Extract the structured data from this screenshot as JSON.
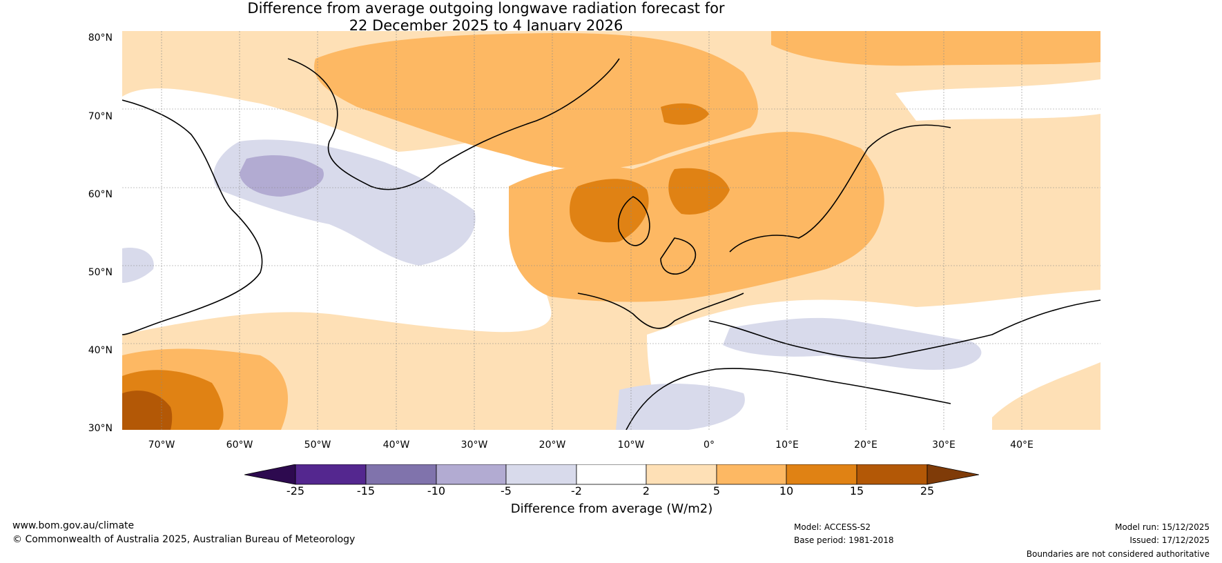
{
  "title": {
    "line1": "Difference from average outgoing longwave radiation forecast for",
    "line2": "22 December 2025 to 4 January 2026"
  },
  "map": {
    "lat_labels": [
      "80°N",
      "70°N",
      "60°N",
      "50°N",
      "40°N",
      "30°N"
    ],
    "lon_labels": [
      "70°W",
      "60°W",
      "50°W",
      "40°W",
      "30°W",
      "20°W",
      "10°W",
      "0°",
      "10°E",
      "20°E",
      "30°E",
      "40°E"
    ]
  },
  "colorbar": {
    "title": "Difference from average (W/m2)",
    "tick_labels": [
      "-25",
      "-15",
      "-10",
      "-5",
      "-2",
      "2",
      "5",
      "10",
      "15",
      "25"
    ],
    "colors": [
      "#2d0a4f",
      "#54278f",
      "#8073ac",
      "#b2abd2",
      "#d8daeb",
      "#ffffff",
      "#fee0b6",
      "#fdb863",
      "#e08214",
      "#b35806",
      "#7f3b08"
    ]
  },
  "footer": {
    "website": "www.bom.gov.au/climate",
    "copyright": "© Commonwealth of Australia 2025, Australian Bureau of Meteorology",
    "model": "Model: ACCESS-S2",
    "base_period": "Base period: 1981-2018",
    "model_run": "Model run: 15/12/2025",
    "issued": "Issued: 17/12/2025",
    "disclaimer": "Boundaries are not considered authoritative"
  }
}
